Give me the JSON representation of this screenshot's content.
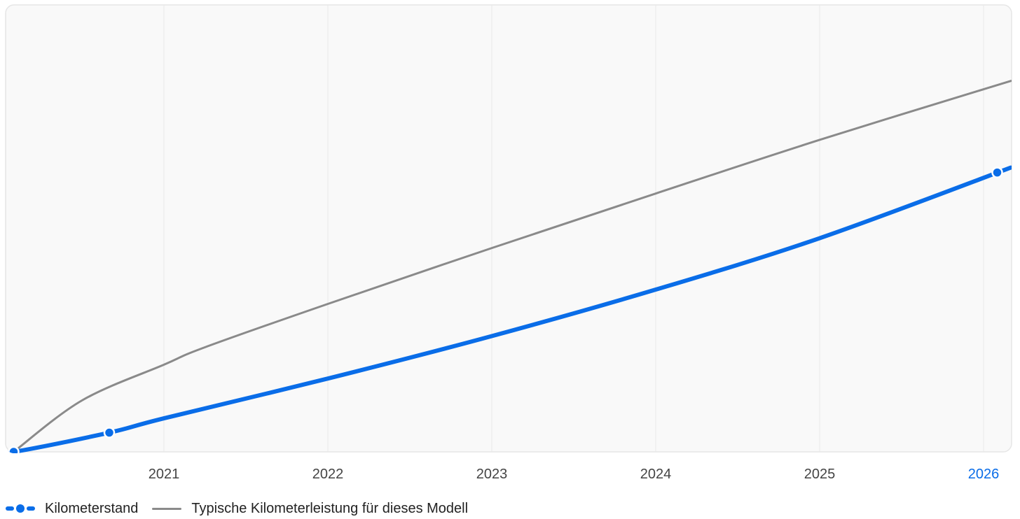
{
  "chart_data": {
    "type": "line",
    "x_ticks": [
      "2021",
      "2022",
      "2023",
      "2024",
      "2025",
      "2026"
    ],
    "highlight_tick": "2026",
    "grid": true,
    "legend_position": "bottom-left",
    "series": [
      {
        "name": "Kilometerstand",
        "color": "#0a6de8",
        "marker_points": [
          {
            "x": "2020-02",
            "y": 0
          },
          {
            "x": "2020-09",
            "y": 4.3
          },
          {
            "x": "2026-02",
            "y": 62.5
          }
        ],
        "points": [
          {
            "x": "2019-12",
            "y": 0
          },
          {
            "x": "2020-02",
            "y": 0
          },
          {
            "x": "2020-09",
            "y": 4.3
          },
          {
            "x": "2021-01",
            "y": 7.5
          },
          {
            "x": "2022-01",
            "y": 16.4
          },
          {
            "x": "2023-01",
            "y": 25.9
          },
          {
            "x": "2024-01",
            "y": 36.3
          },
          {
            "x": "2025-01",
            "y": 47.8
          },
          {
            "x": "2026-03",
            "y": 63.6
          }
        ]
      },
      {
        "name": "Typische Kilometerleistung für dieses Modell",
        "color": "#8a8a8a",
        "points": [
          {
            "x": "2020-02",
            "y": 0
          },
          {
            "x": "2020-07",
            "y": 11.5
          },
          {
            "x": "2021-01",
            "y": 19.5
          },
          {
            "x": "2021-04",
            "y": 23.4
          },
          {
            "x": "2022-01",
            "y": 33.1
          },
          {
            "x": "2023-01",
            "y": 45.6
          },
          {
            "x": "2024-01",
            "y": 57.8
          },
          {
            "x": "2025-01",
            "y": 69.8
          },
          {
            "x": "2026-03",
            "y": 83.0
          }
        ]
      }
    ]
  },
  "legend": {
    "blue_label": "Kilometerstand",
    "grey_label": "Typische Kilometerleistung für dieses Modell"
  }
}
